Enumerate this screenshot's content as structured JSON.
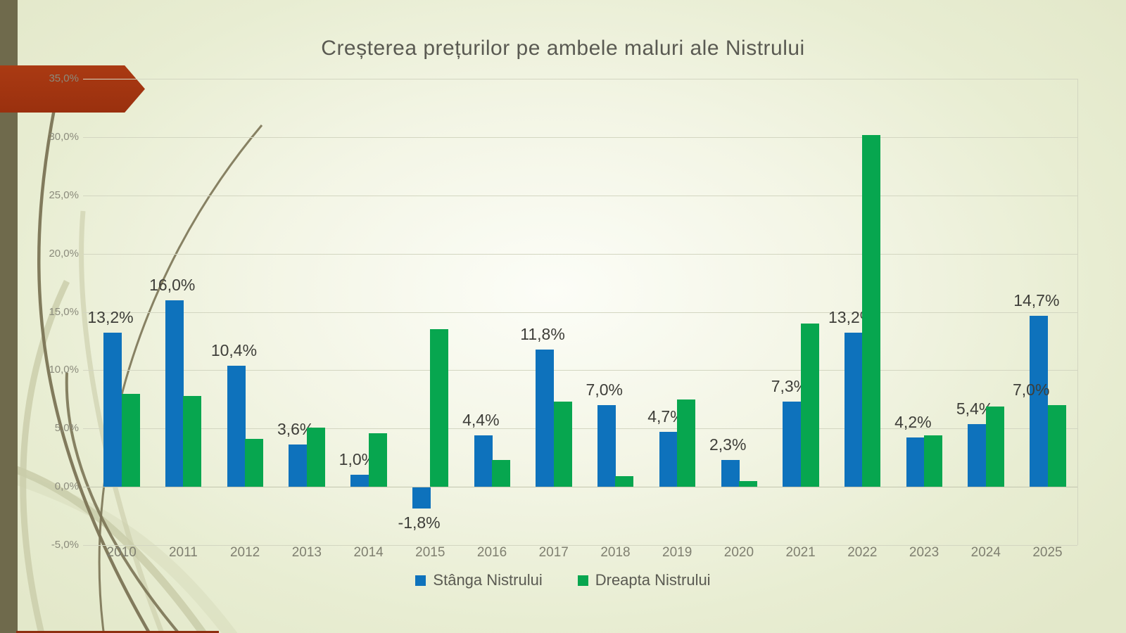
{
  "slide": {
    "title": "Creșterea prețurilor pe ambele maluri ale Nistrului"
  },
  "chart_data": {
    "type": "bar",
    "title": "Creșterea prețurilor pe ambele maluri ale Nistrului",
    "categories": [
      "2010",
      "2011",
      "2012",
      "2013",
      "2014",
      "2015",
      "2016",
      "2017",
      "2018",
      "2019",
      "2020",
      "2021",
      "2022",
      "2023",
      "2024",
      "2025"
    ],
    "series": [
      {
        "name": "Stânga Nistrului",
        "color": "#0e72bc",
        "values": [
          13.2,
          16.0,
          10.4,
          3.6,
          1.0,
          -1.8,
          4.4,
          11.8,
          7.0,
          4.7,
          2.3,
          7.3,
          13.2,
          4.2,
          5.4,
          14.7
        ],
        "labels": [
          "13,2%",
          "16,0%",
          "10,4%",
          "3,6%",
          "1,0%",
          "-1,8%",
          "4,4%",
          "11,8%",
          "7,0%",
          "4,7%",
          "2,3%",
          "7,3%",
          "13,2%",
          "4,2%",
          "5,4%",
          "14,7%"
        ]
      },
      {
        "name": "Dreapta Nistrului",
        "color": "#07a64f",
        "values": [
          8.0,
          7.8,
          4.1,
          5.1,
          4.6,
          13.5,
          2.3,
          7.3,
          0.9,
          7.5,
          0.5,
          14.0,
          30.2,
          4.4,
          6.9,
          7.0
        ],
        "labels": [
          null,
          null,
          null,
          null,
          null,
          null,
          null,
          null,
          null,
          null,
          null,
          null,
          null,
          null,
          null,
          "7,0%"
        ]
      }
    ],
    "y_axis": {
      "range": [
        -5,
        35
      ],
      "grid": true,
      "ticks": [
        {
          "value": -5,
          "label": "-5,0%"
        },
        {
          "value": 0,
          "label": "0,0%"
        },
        {
          "value": 5,
          "label": "5,0%"
        },
        {
          "value": 10,
          "label": "10,0%"
        },
        {
          "value": 15,
          "label": "15,0%"
        },
        {
          "value": 20,
          "label": "20,0%"
        },
        {
          "value": 25,
          "label": "25,0%"
        },
        {
          "value": 30,
          "label": "30,0%"
        },
        {
          "value": 35,
          "label": "35,0%"
        }
      ]
    },
    "legend": {
      "position": "bottom"
    }
  },
  "theme": {
    "arrow_red_top": "#aa3a13",
    "arrow_red_bottom": "#9a300e",
    "sidebar_olive": "#6f6a4c",
    "bottom_strip_red": "#8e2f10",
    "title_color": "#5a5a52",
    "gridline_color": "#d3d6c1",
    "tick_label_color": "#8b8b7c",
    "data_label_color": "#3e3e39"
  }
}
